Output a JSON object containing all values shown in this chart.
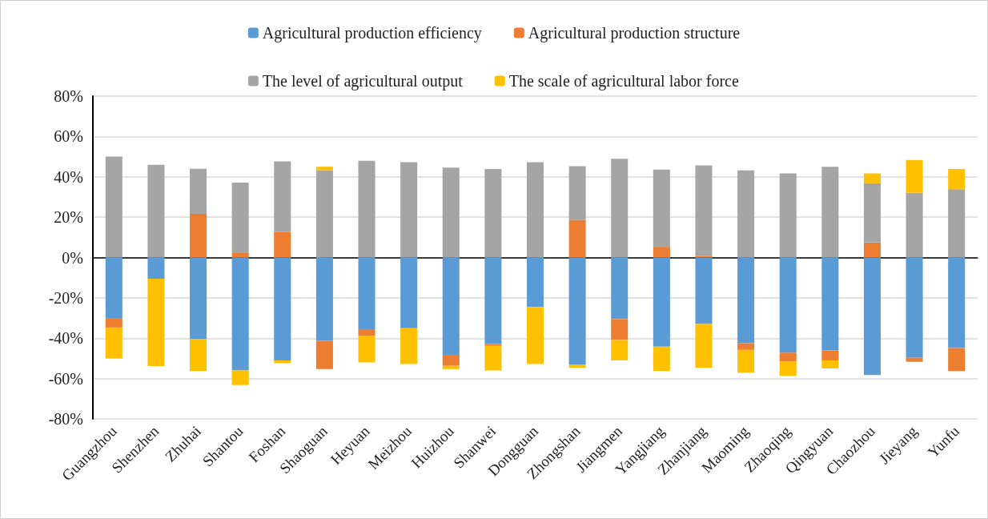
{
  "chart_data": {
    "type": "bar",
    "stacked": true,
    "legend": "top",
    "grid": "y",
    "categories": [
      "Guangzhou",
      "Shenzhen",
      "Zhuhai",
      "Shantou",
      "Foshan",
      "Shaoguan",
      "Heyuan",
      "Meizhou",
      "Huizhou",
      "Shanwei",
      "Dongguan",
      "Zhongshan",
      "Jiangmen",
      "Yangjiang",
      "Zhanjiang",
      "Maoming",
      "Zhaoqing",
      "Qingyuan",
      "Chaozhou",
      "Jieyang",
      "Yunfu"
    ],
    "ylim": [
      -80,
      80
    ],
    "yticks": [
      {
        "value": -80,
        "label": "-80%"
      },
      {
        "value": -60,
        "label": "-60%"
      },
      {
        "value": -40,
        "label": "-40%"
      },
      {
        "value": -20,
        "label": "-20%"
      },
      {
        "value": 0,
        "label": "0%"
      },
      {
        "value": 20,
        "label": "20%"
      },
      {
        "value": 40,
        "label": "40%"
      },
      {
        "value": 60,
        "label": "60%"
      },
      {
        "value": 80,
        "label": "80%"
      }
    ],
    "series": [
      {
        "name": "Agricultural production efficiency",
        "color": "#5b9bd5",
        "values": [
          -30,
          -10.5,
          -40.3,
          -56,
          -51,
          -41.2,
          -35.5,
          -35,
          -48.2,
          -42.9,
          -24.5,
          -53.2,
          -30.5,
          -44.2,
          -33,
          -42.5,
          -47.2,
          -46,
          -58.3,
          -49.7,
          -44.9
        ]
      },
      {
        "name": "Agricultural production structure",
        "color": "#ed7d31",
        "values": [
          -4.7,
          null,
          21.6,
          2.5,
          12.6,
          -14.1,
          -3.3,
          null,
          -5.5,
          -0.9,
          null,
          18.7,
          -10.4,
          5.3,
          0.8,
          -3.3,
          -4.2,
          -5,
          7.4,
          -2,
          -11.4
        ]
      },
      {
        "name": "The level of agricultural output",
        "color": "#a5a5a5",
        "values": [
          50,
          46,
          22.4,
          34.6,
          35,
          43.3,
          47.9,
          47.2,
          44.6,
          43.9,
          47.2,
          26.6,
          48.9,
          38.3,
          44.9,
          43.2,
          41.7,
          45,
          29.4,
          32.1,
          33.8
        ]
      },
      {
        "name": "The scale of agricultural labor force",
        "color": "#ffc000",
        "values": [
          -15.4,
          -43.3,
          -16,
          -7.2,
          -1.4,
          1.7,
          -13.2,
          -17.8,
          -1.6,
          -12.2,
          -28.3,
          -1.5,
          -10.1,
          -12.1,
          -21.7,
          -11.3,
          -7.3,
          -4,
          4.9,
          16.2,
          10.1
        ]
      }
    ]
  }
}
